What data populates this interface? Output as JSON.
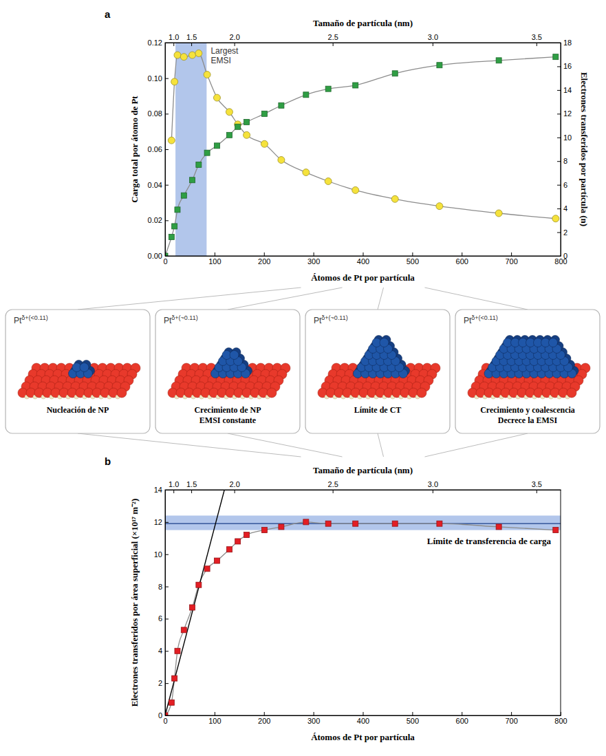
{
  "chart_data": [
    {
      "panel_label": "a",
      "type": "line",
      "xlabel": "Átomos de Pt por partícula",
      "xlim": [
        0,
        800
      ],
      "xticks": [
        0,
        100,
        200,
        300,
        400,
        500,
        600,
        700,
        800
      ],
      "x2label": "Tamaño de partícula (nm)",
      "x2ticks": [
        {
          "value": 17,
          "label": "1.0"
        },
        {
          "value": 53,
          "label": "1.5"
        },
        {
          "value": 140,
          "label": "2.0"
        },
        {
          "value": 339,
          "label": "2.5"
        },
        {
          "value": 541,
          "label": "3.0"
        },
        {
          "value": 751,
          "label": "3.5"
        }
      ],
      "ylabel": "Carga total por átomo de Pt",
      "ylim": [
        0,
        0.12
      ],
      "yticks": [
        {
          "value": 0,
          "label": "0.00"
        },
        0.02,
        0.04,
        0.06,
        0.08,
        {
          "value": 0.1,
          "label": "0.10"
        },
        0.12
      ],
      "y2label": "Electrones transferidos por partícula (n)",
      "y2lim": [
        0,
        18
      ],
      "y2ticks": [
        0,
        2,
        4,
        6,
        8,
        10,
        12,
        14,
        16,
        18
      ],
      "series": [
        {
          "color": "#f5e23c",
          "marker": "circle",
          "line_style": "solid",
          "x": [
            13,
            19,
            25,
            38,
            55,
            68,
            85,
            105,
            130,
            147,
            165,
            201,
            235,
            285,
            330,
            385,
            465,
            555,
            675,
            790
          ],
          "values": [
            0.065,
            0.098,
            0.113,
            0.112,
            0.113,
            0.114,
            0.102,
            0.089,
            0.081,
            0.074,
            0.068,
            0.063,
            0.054,
            0.047,
            0.042,
            0.037,
            0.032,
            0.028,
            0.024,
            0.021
          ]
        },
        {
          "color": "#2f9e44",
          "marker": "square",
          "line_style": "solid",
          "axis": "y2",
          "x": [
            0,
            13,
            19,
            25,
            38,
            55,
            68,
            85,
            105,
            130,
            147,
            165,
            201,
            235,
            285,
            330,
            385,
            465,
            555,
            675,
            790
          ],
          "values": [
            0,
            1.6,
            2.5,
            3.9,
            5.1,
            6.4,
            7.7,
            8.7,
            9.3,
            10.2,
            10.9,
            11.3,
            12.0,
            12.7,
            13.6,
            14.1,
            14.4,
            15.4,
            16.1,
            16.5,
            16.8
          ]
        }
      ],
      "shaded_band": {
        "x": [
          21,
          84
        ],
        "color": "#9fb8e6"
      },
      "annotations": [
        {
          "text": "Largest EMSI"
        }
      ]
    },
    {
      "panel_label": "b",
      "type": "line",
      "xlabel": "Átomos de Pt por partícula",
      "xlim": [
        0,
        800
      ],
      "xticks": [
        0,
        100,
        200,
        300,
        400,
        500,
        600,
        700,
        800
      ],
      "x2label": "Tamaño de partícula (nm)",
      "x2ticks": [
        {
          "value": 17,
          "label": "1.0"
        },
        {
          "value": 53,
          "label": "1.5"
        },
        {
          "value": 140,
          "label": "2.0"
        },
        {
          "value": 339,
          "label": "2.5"
        },
        {
          "value": 541,
          "label": "3.0"
        },
        {
          "value": 751,
          "label": "3.5"
        }
      ],
      "ylabel": "Electrones transferidos por área superficial (×10¹⁷ m⁻²)",
      "ylim": [
        0,
        14
      ],
      "yticks": [
        0,
        2,
        4,
        6,
        8,
        10,
        12,
        14
      ],
      "series": [
        {
          "color": "#e31e24",
          "marker": "square",
          "line_style": "solid",
          "x": [
            0,
            13,
            19,
            25,
            38,
            55,
            68,
            85,
            105,
            130,
            147,
            165,
            201,
            235,
            285,
            330,
            385,
            465,
            555,
            675,
            790
          ],
          "values": [
            0,
            0.8,
            2.3,
            4.0,
            5.3,
            6.7,
            8.1,
            9.1,
            9.6,
            10.3,
            10.8,
            11.2,
            11.5,
            11.7,
            12.0,
            11.9,
            11.9,
            11.9,
            11.9,
            11.7,
            11.5
          ]
        },
        {
          "type": "line",
          "color": "#000000",
          "line_style": "solid",
          "x": [
            0,
            120
          ],
          "values": [
            0,
            14
          ]
        }
      ],
      "reference": {
        "value": 11.9,
        "band": [
          11.5,
          12.4
        ],
        "color": "#9fb8e6"
      },
      "annotations": [
        {
          "text": "Límite de transferencia de carga"
        }
      ]
    }
  ],
  "diagram": {
    "panels": [
      {
        "label": "Pt",
        "superscript": "δ+(<0.11)",
        "caption": [
          "Nucleación de NP"
        ]
      },
      {
        "label": "Pt",
        "superscript": "δ+(~0.11)",
        "caption": [
          "Crecimiento de NP",
          "EMSI constante"
        ]
      },
      {
        "label": "Pt",
        "superscript": "δ+(~0.11)",
        "caption": [
          "Límite de CT"
        ]
      },
      {
        "label": "Pt",
        "superscript": "δ+(<0.11)",
        "caption": [
          "Crecimiento y coalescencia",
          "Decrece la EMSI"
        ]
      }
    ]
  }
}
